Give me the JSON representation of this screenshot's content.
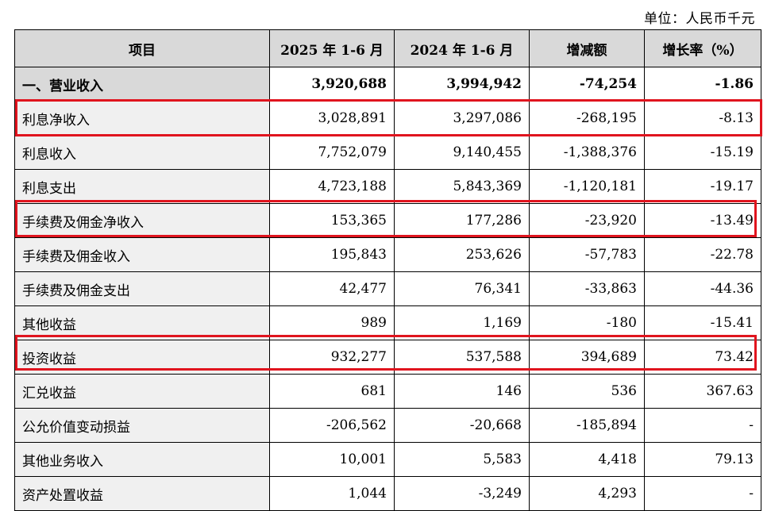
{
  "unit_label": "单位：人民币千元",
  "headers": [
    "项目",
    "2025 年 1-6 月",
    "2024 年 1-6 月",
    "增减额",
    "增长率（%）"
  ],
  "rows": [
    {
      "item": "一、营业收入",
      "y2025": "3,920,688",
      "y2024": "3,994,942",
      "change": "-74,254",
      "rate": "-1.86"
    },
    {
      "item": "利息净收入",
      "y2025": "3,028,891",
      "y2024": "3,297,086",
      "change": "-268,195",
      "rate": "-8.13"
    },
    {
      "item": "利息收入",
      "y2025": "7,752,079",
      "y2024": "9,140,455",
      "change": "-1,388,376",
      "rate": "-15.19"
    },
    {
      "item": "利息支出",
      "y2025": "4,723,188",
      "y2024": "5,843,369",
      "change": "-1,120,181",
      "rate": "-19.17"
    },
    {
      "item": "手续费及佣金净收入",
      "y2025": "153,365",
      "y2024": "177,286",
      "change": "-23,920",
      "rate": "-13.49"
    },
    {
      "item": "手续费及佣金收入",
      "y2025": "195,843",
      "y2024": "253,626",
      "change": "-57,783",
      "rate": "-22.78"
    },
    {
      "item": "手续费及佣金支出",
      "y2025": "42,477",
      "y2024": "76,341",
      "change": "-33,863",
      "rate": "-44.36"
    },
    {
      "item": "其他收益",
      "y2025": "989",
      "y2024": "1,169",
      "change": "-180",
      "rate": "-15.41"
    },
    {
      "item": "投资收益",
      "y2025": "932,277",
      "y2024": "537,588",
      "change": "394,689",
      "rate": "73.42"
    },
    {
      "item": "汇兑收益",
      "y2025": "681",
      "y2024": "146",
      "change": "536",
      "rate": "367.63"
    },
    {
      "item": "公允价值变动损益",
      "y2025": "-206,562",
      "y2024": "-20,668",
      "change": "-185,894",
      "rate": "-"
    },
    {
      "item": "其他业务收入",
      "y2025": "10,001",
      "y2024": "5,583",
      "change": "4,418",
      "rate": "79.13"
    },
    {
      "item": "资产处置收益",
      "y2025": "1,044",
      "y2024": "-3,249",
      "change": "4,293",
      "rate": "-"
    }
  ],
  "highlight_color": "#e0141e",
  "header_bg": "#d9d9d9"
}
